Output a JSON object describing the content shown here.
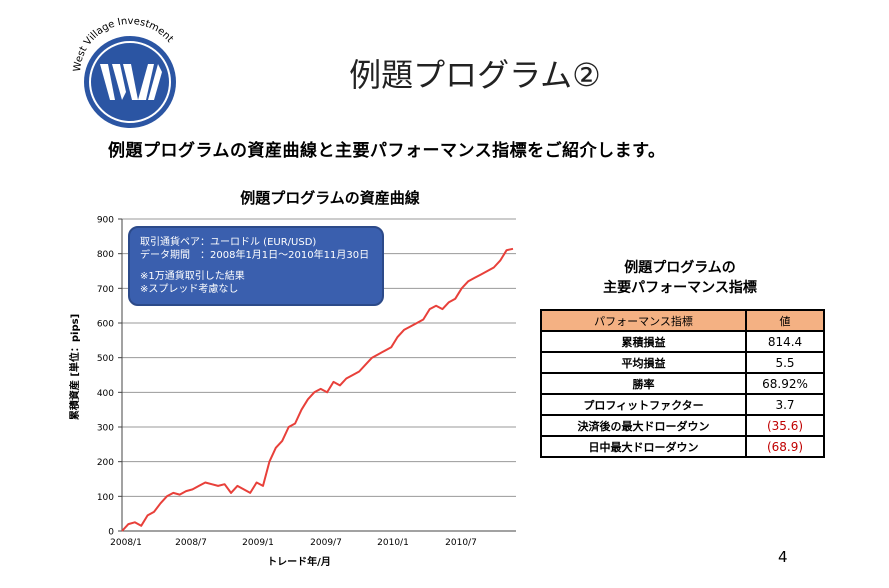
{
  "logo": {
    "text": "West Village Investment",
    "mark": "WVI"
  },
  "page_title": "例題プログラム②",
  "subtitle": "例題プログラムの資産曲線と主要パフォーマンス指標をご紹介します。",
  "info_box": {
    "line1": "取引通貨ペア：ユーロドル (EUR/USD)",
    "line2": "データ期間　：2008年1月1日～2010年11月30日",
    "line3": "※1万通貨取引した結果",
    "line4": "※スプレッド考慮なし"
  },
  "chart_data": {
    "type": "line",
    "title": "例題プログラムの資産曲線",
    "xlabel": "トレード年/月",
    "ylabel": "累積資産 [単位：pips]",
    "ylim": [
      0,
      900
    ],
    "yticks": [
      0,
      100,
      200,
      300,
      400,
      500,
      600,
      700,
      800,
      900
    ],
    "xticks": [
      "2008/1",
      "2008/7",
      "2009/1",
      "2009/7",
      "2010/1",
      "2010/7"
    ],
    "grid": true,
    "color": "#e8403a",
    "series": [
      {
        "name": "",
        "values": [
          0,
          20,
          25,
          15,
          45,
          55,
          80,
          100,
          110,
          105,
          115,
          120,
          130,
          140,
          135,
          130,
          135,
          110,
          130,
          120,
          110,
          140,
          130,
          200,
          240,
          260,
          300,
          310,
          350,
          380,
          400,
          410,
          400,
          430,
          420,
          440,
          450,
          460,
          480,
          500,
          510,
          520,
          530,
          560,
          580,
          590,
          600,
          610,
          640,
          650,
          640,
          660,
          670,
          700,
          720,
          730,
          740,
          750,
          760,
          780,
          810,
          814
        ]
      }
    ]
  },
  "kpi": {
    "title_line1": "例題プログラムの",
    "title_line2": "主要パフォーマンス指標",
    "header_name": "パフォーマンス指標",
    "header_value": "値",
    "rows": [
      {
        "name": "累積損益",
        "value": "814.4"
      },
      {
        "name": "平均損益",
        "value": "5.5"
      },
      {
        "name": "勝率",
        "value": "68.92%"
      },
      {
        "name": "プロフィットファクター",
        "value": "3.7"
      },
      {
        "name": "決済後の最大ドローダウン",
        "value": "(35.6)"
      },
      {
        "name": "日中最大ドローダウン",
        "value": "(68.9)"
      }
    ]
  },
  "page_number": "4"
}
